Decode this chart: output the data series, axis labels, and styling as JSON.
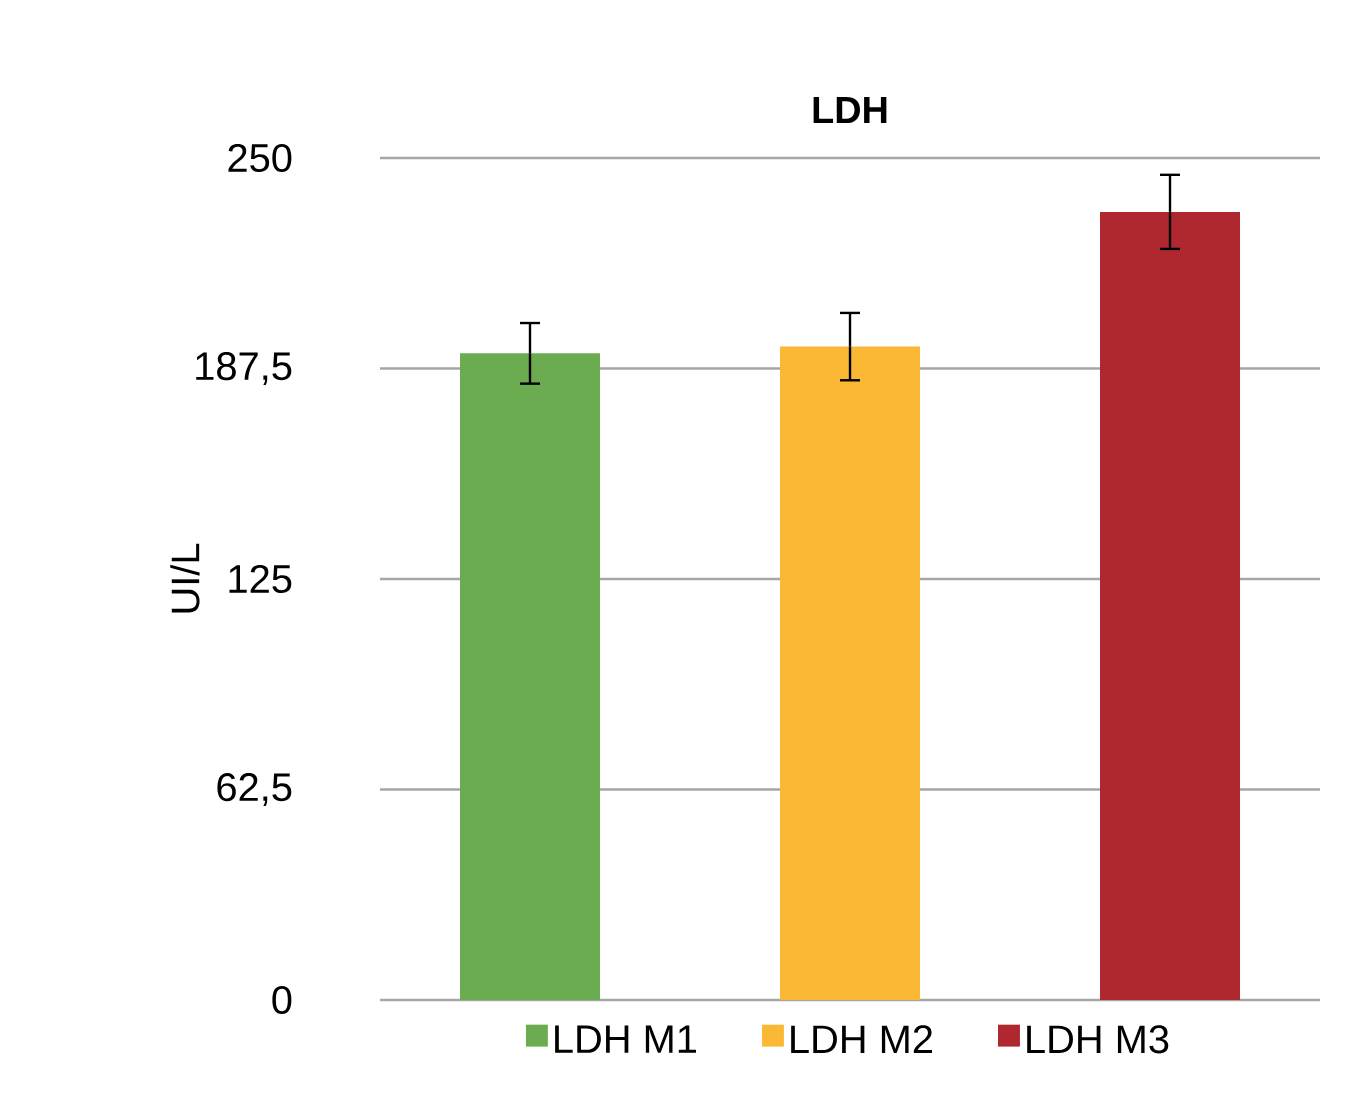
{
  "chart_data": {
    "type": "bar",
    "title": "LDH",
    "ylabel": "UI/L",
    "categories": [
      null
    ],
    "series": [
      {
        "name": "LDH M1",
        "color": "#6bac50",
        "values": [
          192
        ],
        "errors": [
          9
        ]
      },
      {
        "name": "LDH M2",
        "color": "#fbb834",
        "values": [
          194
        ],
        "errors": [
          10
        ]
      },
      {
        "name": "LDH M3",
        "color": "#b0282f",
        "values": [
          234
        ],
        "errors": [
          11
        ]
      }
    ],
    "ylim": [
      0,
      250
    ],
    "yticks": [
      0,
      {
        "value": 62.5,
        "label": "62,5"
      },
      125,
      {
        "value": 187.5,
        "label": "187,5"
      },
      250
    ],
    "grid": "y",
    "legend": "bottom"
  }
}
